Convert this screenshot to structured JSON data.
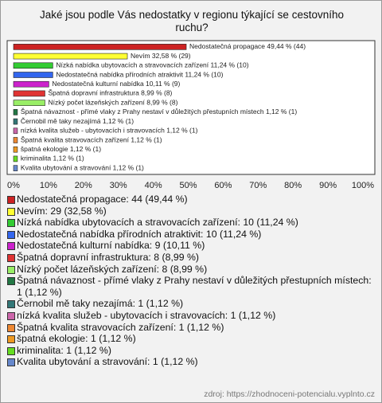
{
  "chart_data": {
    "type": "hbar",
    "title": "Jaké jsou podle Vás nedostatky v regionu týkající se cestovního ruchu?",
    "categories": [
      "Nedostatečná propagace",
      "Nevím",
      "Nízká nabídka ubytovacích a stravovacích zařízení",
      "Nedostatečná nabídka přírodních atraktivit",
      "Nedostatečná kulturní nabídka",
      "Špatná dopravní infrastruktura",
      "Nízký počet lázeňských zařízení",
      "Špatná návaznost - přímé vlaky z Prahy nestaví v důležitých přestupních místech",
      "Černobil mě taky nezajímá",
      "nízká kvalita služeb - ubytovacích i stravovacích",
      "Špatná kvalita stravovacích zařízení",
      "špatná ekologie",
      "kriminalita",
      "Kvalita ubytování a stravování"
    ],
    "values": [
      49.44,
      32.58,
      11.24,
      11.24,
      10.11,
      8.99,
      8.99,
      1.12,
      1.12,
      1.12,
      1.12,
      1.12,
      1.12,
      1.12
    ],
    "value_labels": [
      "Nedostatečná propagace 49,44 % (44)",
      "Nevím 32,58 % (29)",
      "Nízká nabídka ubytovacích a stravovacích zařízení 11,24 % (10)",
      "Nedostatečná nabídka přírodních atraktivit 11,24 % (10)",
      "Nedostatečná kulturní nabídka 10,11 % (9)",
      "Špatná dopravní infrastruktura 8,99 % (8)",
      "Nízký počet lázeňských zařízení 8,99 % (8)",
      "Špatná návaznost - přímé vlaky z Prahy nestaví v důležitých přestupních místech 1,12 % (1)",
      "Černobil mě taky nezajímá 1,12 % (1)",
      "nízká kvalita služeb - ubytovacích i stravovacích 1,12 % (1)",
      "Špatná kvalita stravovacích zařízení 1,12 % (1)",
      "špatná ekologie 1,12 % (1)",
      "kriminalita 1,12 % (1)",
      "Kvalita ubytování a stravování 1,12 % (1)"
    ],
    "legend_labels": [
      "Nedostatečná propagace: 44 (49,44 %)",
      "Nevím: 29 (32,58 %)",
      "Nízká nabídka ubytovacích a stravovacích zařízení: 10 (11,24 %)",
      "Nedostatečná nabídka přírodních atraktivit: 10 (11,24 %)",
      "Nedostatečná kulturní nabídka: 9 (10,11 %)",
      "Špatná dopravní infrastruktura: 8 (8,99 %)",
      "Nízký počet lázeňských zařízení: 8 (8,99 %)",
      "Špatná návaznost - přímé vlaky z Prahy nestaví v důležitých přestupních místech: 1 (1,12 %)",
      "Černobil mě taky nezajímá: 1 (1,12 %)",
      "nízká kvalita služeb - ubytovacích i stravovacích: 1 (1,12 %)",
      "Špatná kvalita stravovacích zařízení: 1 (1,12 %)",
      "špatná ekologie: 1 (1,12 %)",
      "kriminalita: 1 (1,12 %)",
      "Kvalita ubytování a stravování: 1 (1,12 %)"
    ],
    "colors": [
      "#cc2222",
      "#ffff33",
      "#33cc33",
      "#3366ee",
      "#cc22cc",
      "#e03333",
      "#99ee66",
      "#227744",
      "#337777",
      "#cc66aa",
      "#ee8833",
      "#ee9922",
      "#66dd22",
      "#6688cc"
    ],
    "xlim": [
      0,
      100
    ],
    "xticks": [
      {
        "value": 0,
        "label": "0%"
      },
      {
        "value": 10,
        "label": "10%"
      },
      {
        "value": 20,
        "label": "20%"
      },
      {
        "value": 30,
        "label": "30%"
      },
      {
        "value": 40,
        "label": "40%"
      },
      {
        "value": 50,
        "label": "50%"
      },
      {
        "value": 60,
        "label": "60%"
      },
      {
        "value": 70,
        "label": "70%"
      },
      {
        "value": 80,
        "label": "80%"
      },
      {
        "value": 90,
        "label": "90%"
      },
      {
        "value": 100,
        "label": "100%"
      }
    ],
    "source": "zdroj: https://zhodnoceni-potencialu.vyplnto.cz"
  }
}
